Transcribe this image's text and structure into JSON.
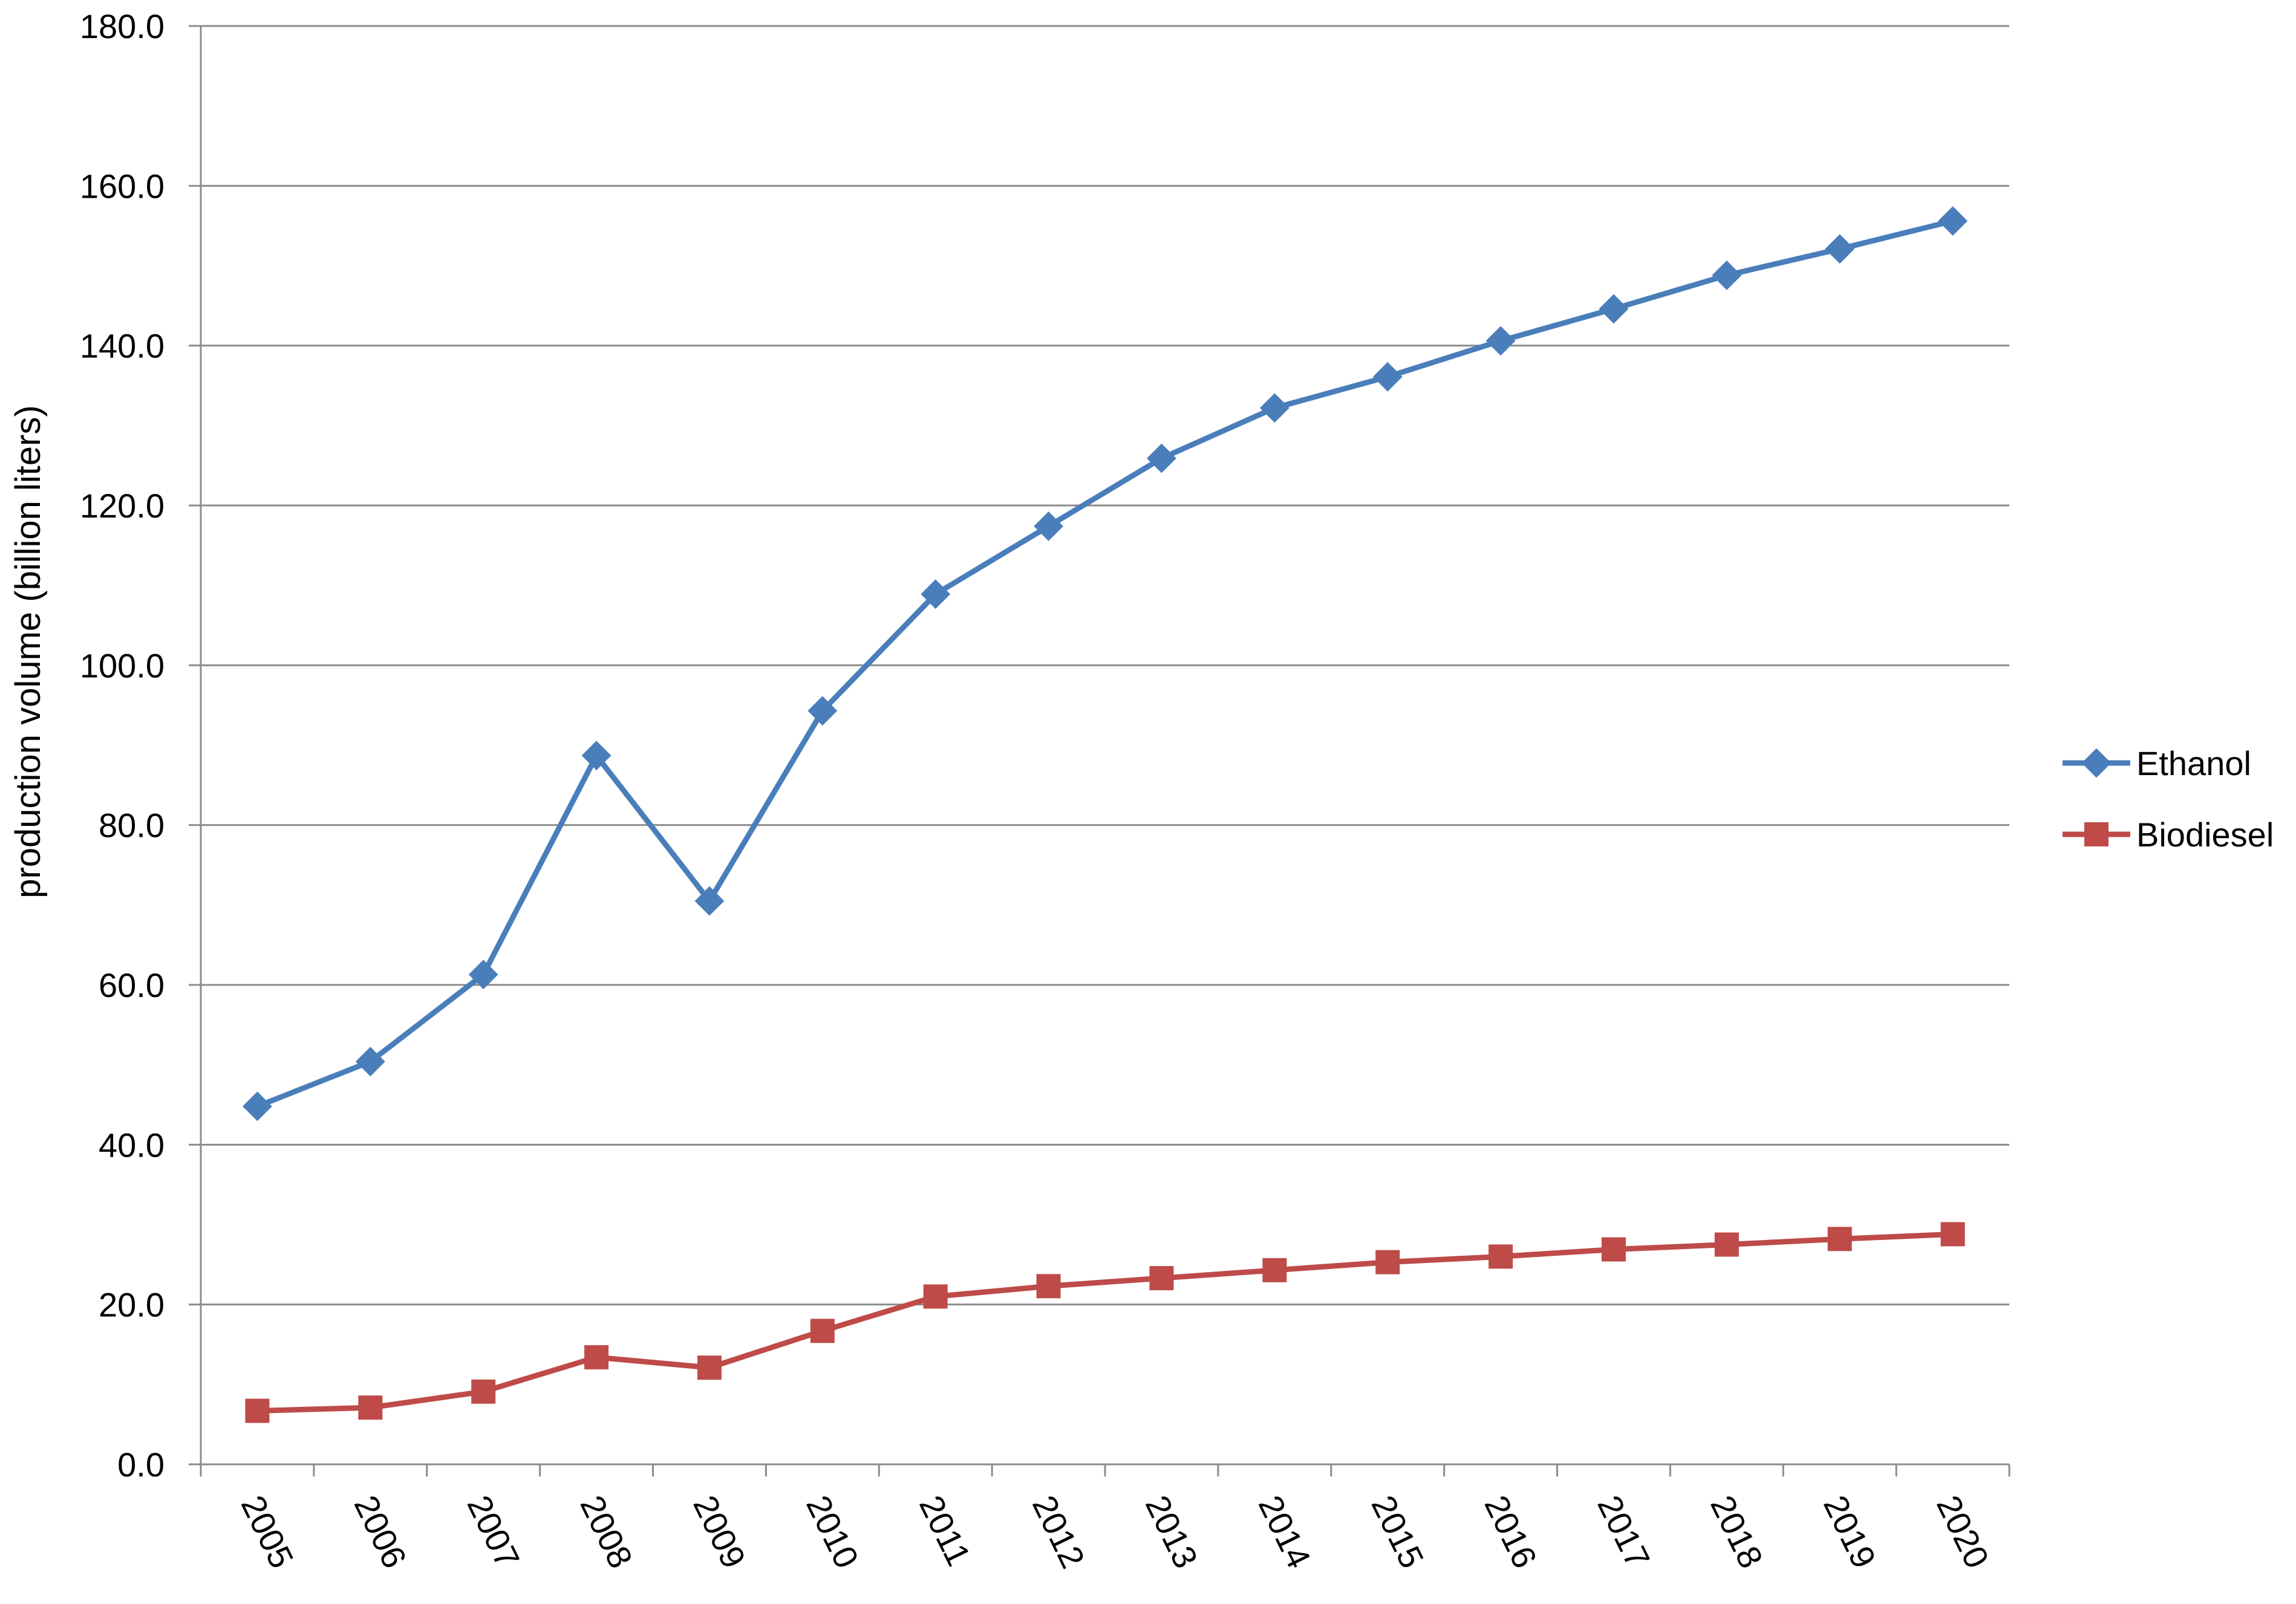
{
  "chart_data": {
    "type": "line",
    "title": "",
    "xlabel": "",
    "ylabel": "production volume (billion liters)",
    "ylim": [
      0,
      180
    ],
    "yticks": [
      "0.0",
      "20.0",
      "40.0",
      "60.0",
      "80.0",
      "100.0",
      "120.0",
      "140.0",
      "160.0",
      "180.0"
    ],
    "categories": [
      "2005",
      "2006",
      "2007",
      "2008",
      "2009",
      "2010",
      "2011",
      "2012",
      "2013",
      "2014",
      "2015",
      "2016",
      "2017",
      "2018",
      "2019",
      "2020"
    ],
    "grid": "horizontal",
    "legend": "right",
    "series": [
      {
        "name": "Ethanol",
        "color": "#4a7ebb",
        "marker": "diamond",
        "values": [
          44.8,
          50.4,
          61.3,
          88.7,
          70.5,
          94.3,
          108.9,
          117.4,
          125.9,
          132.2,
          136.1,
          140.6,
          144.6,
          148.8,
          152.1,
          155.6
        ]
      },
      {
        "name": "Biodiesel",
        "color": "#be4b48",
        "marker": "square",
        "values": [
          6.7,
          7.1,
          9.1,
          13.4,
          12.1,
          16.7,
          21.0,
          22.3,
          23.3,
          24.3,
          25.3,
          26.0,
          26.9,
          27.5,
          28.2,
          28.8
        ]
      }
    ]
  }
}
